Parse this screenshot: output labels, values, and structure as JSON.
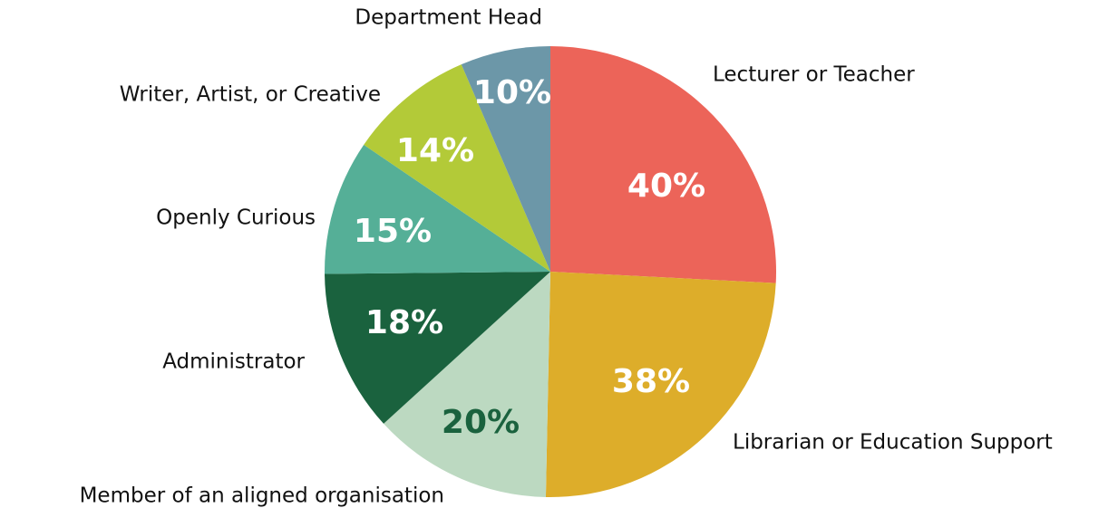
{
  "chart_data": {
    "type": "pie",
    "categories": [
      "Lecturer or Teacher",
      "Librarian or Education Support",
      "Member of an aligned organisation",
      "Administrator",
      "Openly Curious",
      "Writer, Artist, or Creative",
      "Department Head"
    ],
    "values": [
      40,
      38,
      20,
      18,
      15,
      14,
      10
    ],
    "value_labels": [
      "40%",
      "38%",
      "20%",
      "18%",
      "15%",
      "14%",
      "10%"
    ],
    "colors": [
      "#ec6459",
      "#ddad2a",
      "#bcd9c1",
      "#1a623e",
      "#55af97",
      "#b3ca38",
      "#6c97a8"
    ],
    "value_label_colors": [
      "#ffffff",
      "#ffffff",
      "#1a623e",
      "#ffffff",
      "#ffffff",
      "#ffffff",
      "#ffffff"
    ]
  }
}
